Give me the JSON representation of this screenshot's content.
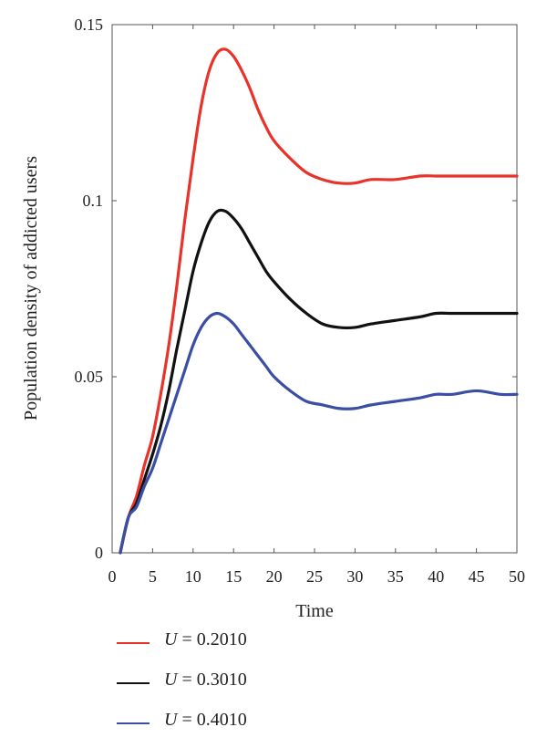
{
  "chart_data": {
    "type": "line",
    "xlabel": "Time",
    "ylabel": "Population density of addicted users",
    "xlim": [
      0,
      50
    ],
    "ylim": [
      0,
      0.15
    ],
    "x_ticks": [
      "0",
      "5",
      "10",
      "15",
      "20",
      "25",
      "30",
      "35",
      "40",
      "45",
      "50"
    ],
    "y_ticks": [
      "0",
      "0.05",
      "0.1",
      "0.15"
    ],
    "grid": false,
    "legend_position": "bottom",
    "x": [
      1,
      2,
      3,
      4,
      5,
      6,
      7,
      8,
      9,
      10,
      11,
      12,
      13,
      14,
      15,
      16,
      17,
      18,
      19,
      20,
      22,
      24,
      26,
      28,
      30,
      32,
      35,
      38,
      40,
      42,
      45,
      48,
      50
    ],
    "series": [
      {
        "name_var": "U",
        "name_rest": " = 0.2010",
        "color": "#e8332a",
        "values": [
          0,
          0.01,
          0.016,
          0.025,
          0.033,
          0.045,
          0.059,
          0.076,
          0.095,
          0.112,
          0.127,
          0.137,
          0.142,
          0.143,
          0.141,
          0.137,
          0.132,
          0.126,
          0.121,
          0.117,
          0.112,
          0.108,
          0.106,
          0.105,
          0.105,
          0.106,
          0.106,
          0.107,
          0.107,
          0.107,
          0.107,
          0.107,
          0.107
        ]
      },
      {
        "name_var": "U",
        "name_rest": " = 0.3010",
        "color": "#111111",
        "values": [
          0,
          0.01,
          0.014,
          0.021,
          0.028,
          0.036,
          0.046,
          0.058,
          0.069,
          0.08,
          0.088,
          0.094,
          0.097,
          0.097,
          0.095,
          0.092,
          0.088,
          0.084,
          0.08,
          0.077,
          0.072,
          0.068,
          0.065,
          0.064,
          0.064,
          0.065,
          0.066,
          0.067,
          0.068,
          0.068,
          0.068,
          0.068,
          0.068
        ]
      },
      {
        "name_var": "U",
        "name_rest": " = 0.4010",
        "color": "#3a4fa3",
        "values": [
          0,
          0.01,
          0.013,
          0.019,
          0.024,
          0.031,
          0.038,
          0.045,
          0.052,
          0.059,
          0.064,
          0.067,
          0.068,
          0.067,
          0.065,
          0.062,
          0.059,
          0.056,
          0.053,
          0.05,
          0.046,
          0.043,
          0.042,
          0.041,
          0.041,
          0.042,
          0.043,
          0.044,
          0.045,
          0.045,
          0.046,
          0.045,
          0.045
        ]
      }
    ]
  }
}
